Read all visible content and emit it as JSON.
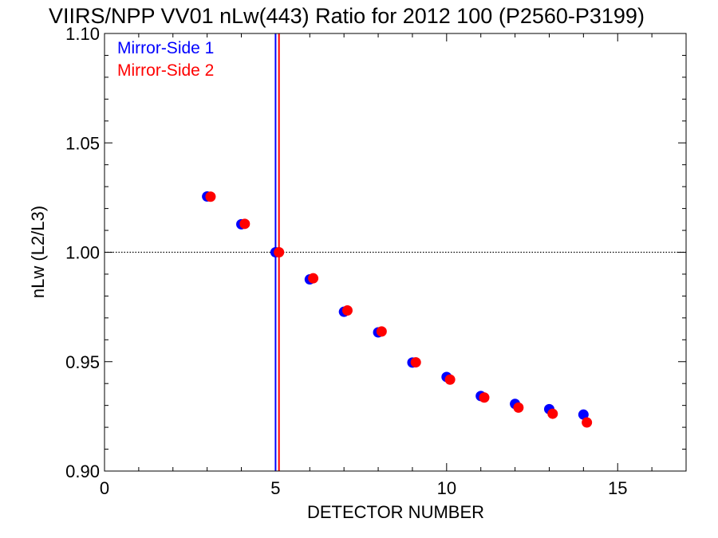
{
  "chart_data": {
    "type": "scatter",
    "title": "VIIRS/NPP VV01 nLw(443) Ratio for 2012 100 (P2560-P3199)",
    "xlabel": "DETECTOR NUMBER",
    "ylabel": "nLw (L2/L3)",
    "xlim": [
      0,
      17
    ],
    "ylim": [
      0.9,
      1.1
    ],
    "x_ticks": [
      "0",
      "5",
      "10",
      "15"
    ],
    "x_tick_values": [
      0,
      5,
      10,
      15
    ],
    "y_ticks": [
      "0.90",
      "0.95",
      "1.00",
      "1.05",
      "1.10"
    ],
    "y_tick_values": [
      0.9,
      0.95,
      1.0,
      1.05,
      1.1
    ],
    "reference_line_y": 1.0,
    "legend_position": "top-left",
    "series": [
      {
        "name": "Mirror-Side 1",
        "color": "#0000ff",
        "x": [
          3,
          4,
          5,
          6,
          7,
          8,
          9,
          10,
          11,
          12,
          13,
          14
        ],
        "y": [
          1.0255,
          1.0128,
          1.0,
          0.9876,
          0.9728,
          0.9634,
          0.9496,
          0.943,
          0.9343,
          0.9307,
          0.9283,
          0.9258
        ],
        "vline_x": 5.0
      },
      {
        "name": "Mirror-Side 2",
        "color": "#ff0000",
        "x": [
          3.1,
          4.1,
          5.1,
          6.1,
          7.1,
          8.1,
          9.1,
          10.1,
          11.1,
          12.1,
          13.1,
          14.1
        ],
        "y": [
          1.0254,
          1.013,
          1.0,
          0.9881,
          0.9734,
          0.9638,
          0.9497,
          0.9418,
          0.9336,
          0.929,
          0.9262,
          0.9222
        ],
        "vline_x": 5.1
      }
    ]
  }
}
